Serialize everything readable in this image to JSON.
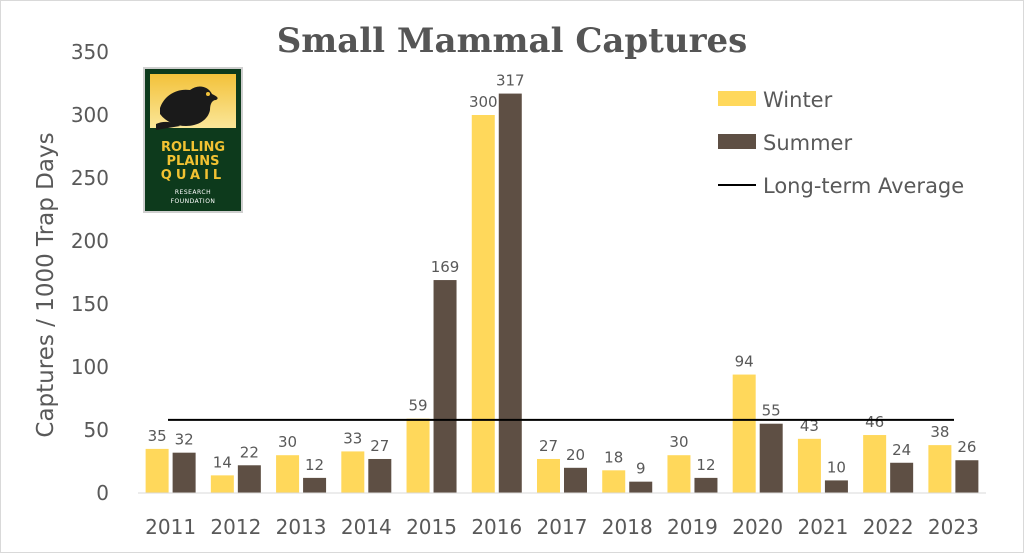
{
  "chart_data": {
    "type": "bar",
    "title": "Small Mammal Captures",
    "xlabel": "",
    "ylabel": "Captures / 1000 Trap Days",
    "ylim": [
      0,
      350
    ],
    "yticks": [
      0,
      50,
      100,
      150,
      200,
      250,
      300,
      350
    ],
    "grid": false,
    "legend_position": "top-right",
    "categories": [
      "2011",
      "2012",
      "2013",
      "2014",
      "2015",
      "2016",
      "2017",
      "2018",
      "2019",
      "2020",
      "2021",
      "2022",
      "2023"
    ],
    "series": [
      {
        "name": "Winter",
        "color": "#ffd85b",
        "values": [
          35,
          14,
          30,
          33,
          59,
          300,
          27,
          18,
          30,
          94,
          43,
          46,
          38
        ]
      },
      {
        "name": "Summer",
        "color": "#5e4f44",
        "values": [
          32,
          22,
          12,
          27,
          169,
          317,
          20,
          9,
          12,
          55,
          10,
          24,
          26
        ]
      }
    ],
    "reference_line": {
      "name": "Long-term Average",
      "color": "#000000",
      "value": 58
    }
  },
  "logo": {
    "lines": [
      "ROLLING",
      "PLAINS",
      "QUAIL"
    ],
    "sublines": [
      "RESEARCH",
      "FOUNDATION"
    ],
    "icon": "quail-icon"
  }
}
